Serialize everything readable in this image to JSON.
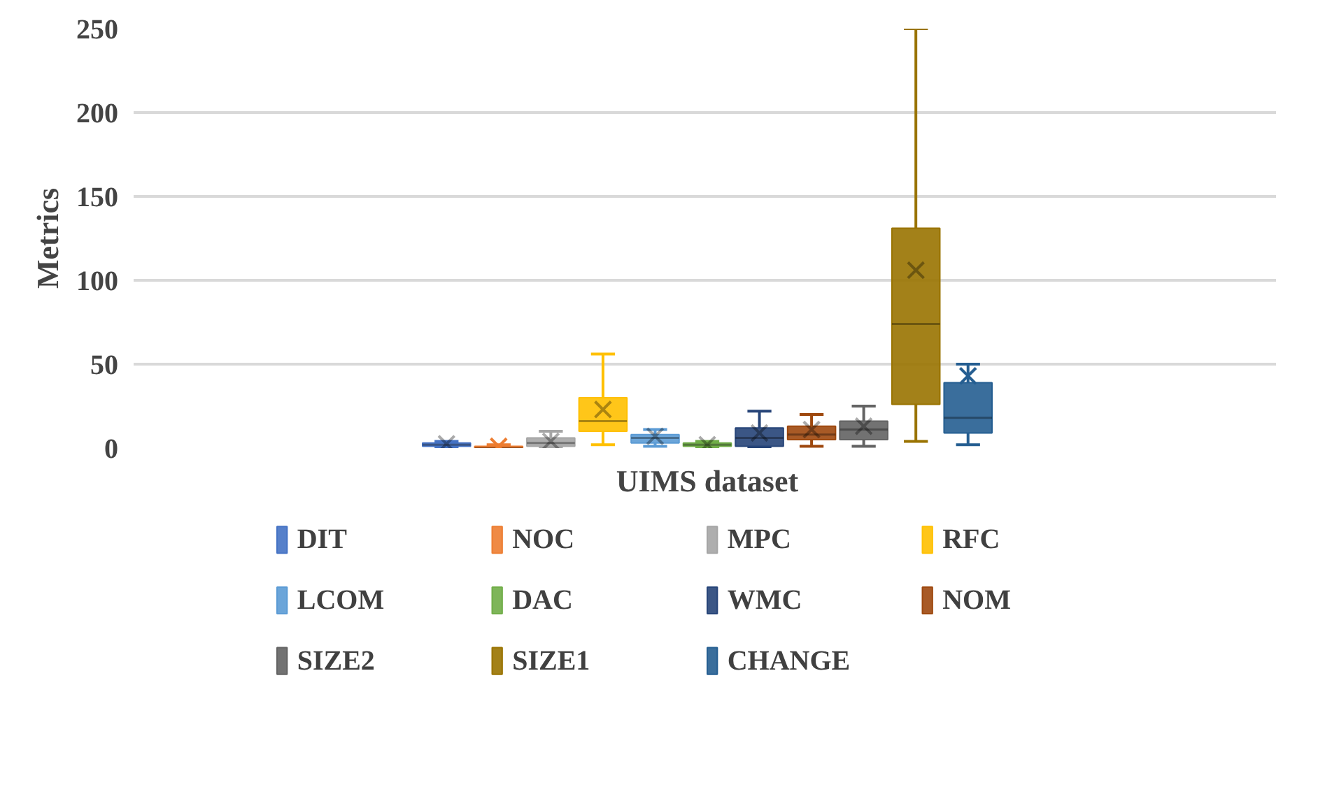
{
  "chart_data": {
    "type": "box",
    "xlabel": "UIMS dataset",
    "ylabel": "Metrics",
    "categories": [
      null
    ],
    "ylim": [
      0,
      250
    ],
    "yticks": [
      0,
      50,
      100,
      150,
      200,
      250
    ],
    "grid": "y",
    "legend": "bottom",
    "series": [
      {
        "name": "DIT",
        "color": "#4472c4",
        "boxes": [
          {
            "low": 0,
            "q1": 1,
            "median": 2,
            "q3": 3,
            "high": 4,
            "mean": 2.5
          }
        ]
      },
      {
        "name": "NOC",
        "color": "#ed7d31",
        "boxes": [
          {
            "low": 0,
            "q1": 0,
            "median": 0,
            "q3": 1,
            "high": 2,
            "mean": 1
          }
        ]
      },
      {
        "name": "MPC",
        "color": "#a5a5a5",
        "boxes": [
          {
            "low": 0,
            "q1": 1,
            "median": 3,
            "q3": 6,
            "high": 10,
            "mean": 4
          }
        ]
      },
      {
        "name": "RFC",
        "color": "#ffc000",
        "boxes": [
          {
            "low": 2,
            "q1": 10,
            "median": 16,
            "q3": 30,
            "high": 56,
            "mean": 23
          }
        ]
      },
      {
        "name": "LCOM",
        "color": "#5b9bd5",
        "boxes": [
          {
            "low": 1,
            "q1": 3,
            "median": 6,
            "q3": 8,
            "high": 11,
            "mean": 7
          }
        ]
      },
      {
        "name": "DAC",
        "color": "#70ad47",
        "boxes": [
          {
            "low": 0,
            "q1": 1,
            "median": 2,
            "q3": 3,
            "high": 4,
            "mean": 2
          }
        ]
      },
      {
        "name": "WMC",
        "color": "#264478",
        "boxes": [
          {
            "low": 0,
            "q1": 1,
            "median": 6,
            "q3": 12,
            "high": 22,
            "mean": 9
          }
        ]
      },
      {
        "name": "NOM",
        "color": "#9e480e",
        "boxes": [
          {
            "low": 1,
            "q1": 5,
            "median": 8,
            "q3": 13,
            "high": 20,
            "mean": 11
          }
        ]
      },
      {
        "name": "SIZE2",
        "color": "#636363",
        "boxes": [
          {
            "low": 1,
            "q1": 5,
            "median": 11,
            "q3": 16,
            "high": 25,
            "mean": 13
          }
        ]
      },
      {
        "name": "SIZE1",
        "color": "#997300",
        "boxes": [
          {
            "low": 4,
            "q1": 26,
            "median": 74,
            "q3": 131,
            "high": 250,
            "mean": 106
          }
        ]
      },
      {
        "name": "CHANGE",
        "color": "#255e91",
        "boxes": [
          {
            "low": 2,
            "q1": 9,
            "median": 18,
            "q3": 39,
            "high": 50,
            "mean": 43
          }
        ]
      }
    ]
  }
}
